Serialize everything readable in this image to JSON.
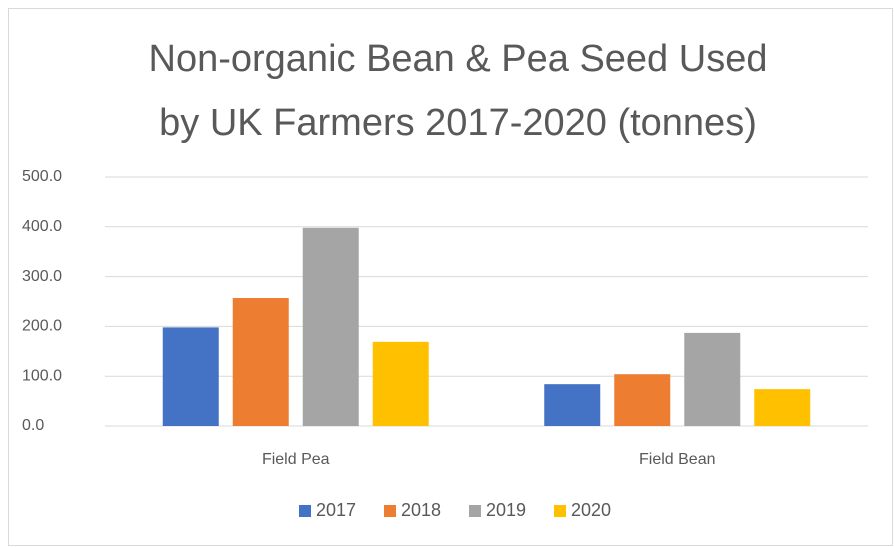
{
  "chart_data": {
    "type": "bar",
    "title": [
      "Non-organic Bean & Pea Seed Used",
      "by UK Farmers 2017-2020 (tonnes)"
    ],
    "categories": [
      "Field Pea",
      "Field Bean"
    ],
    "series": [
      {
        "name": "2017",
        "color": "#4472c4",
        "values": [
          198,
          84
        ]
      },
      {
        "name": "2018",
        "color": "#ed7d31",
        "values": [
          257,
          104
        ]
      },
      {
        "name": "2019",
        "color": "#a5a5a5",
        "values": [
          398,
          187
        ]
      },
      {
        "name": "2020",
        "color": "#ffc000",
        "values": [
          169,
          74
        ]
      }
    ],
    "ylim": [
      0,
      500
    ],
    "yticks": [
      {
        "value": 0,
        "label": "0.0"
      },
      {
        "value": 100,
        "label": "100.0"
      },
      {
        "value": 200,
        "label": "200.0"
      },
      {
        "value": 300,
        "label": "300.0"
      },
      {
        "value": 400,
        "label": "400.0"
      },
      {
        "value": 500,
        "label": "500.0"
      }
    ],
    "grid": true,
    "legend": "bottom"
  }
}
